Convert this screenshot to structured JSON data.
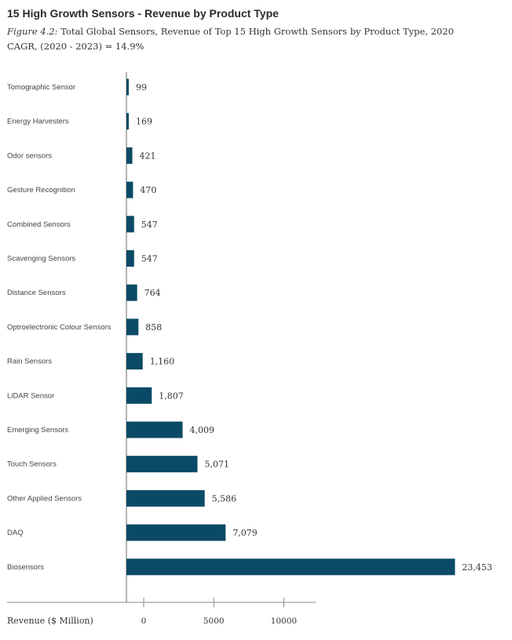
{
  "chart_data": {
    "type": "bar",
    "orientation": "horizontal",
    "title": "15 High Growth Sensors - Revenue by Product Type",
    "subtitle_figure": "Figure 4.2:",
    "subtitle_text": "Total Global Sensors, Revenue of Top 15 High Growth Sensors by Product Type, 2020 CAGR, (2020 - 2023) = 14.9%",
    "xlabel": "Revenue ($ Million)",
    "ylabel": "",
    "categories": [
      "Tomographic Sensor",
      "Energy Harvesters",
      "Odor sensors",
      "Gesture Recognition",
      "Combined Sensors",
      "Scavenging Sensors",
      "Distance Sensors",
      "Optroelectronic Colour Sensors",
      "Rain Sensors",
      "LiDAR Sensor",
      "Emerging Sensors",
      "Touch Sensors",
      "Other Applied Sensors",
      "DAQ",
      "Biosensors"
    ],
    "values": [
      99,
      169,
      421,
      470,
      547,
      547,
      764,
      858,
      1160,
      1807,
      4009,
      5071,
      5586,
      7079,
      23453
    ],
    "value_labels": [
      "99",
      "169",
      "421",
      "470",
      "547",
      "547",
      "764",
      "858",
      "1,160",
      "1,807",
      "4,009",
      "5,071",
      "5,586",
      "7,079",
      "23,453"
    ],
    "xticks": [
      0,
      5000,
      10000
    ],
    "xtick_labels": [
      "0",
      "5000",
      "10000"
    ],
    "bar_color": "#0b4a66",
    "grid": false,
    "legend": "none"
  }
}
